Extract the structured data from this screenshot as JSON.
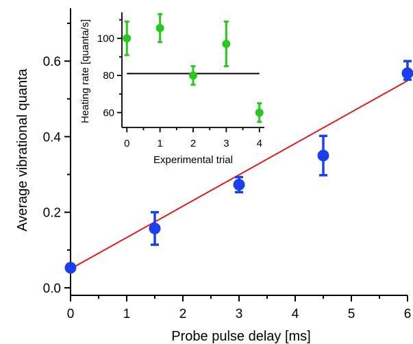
{
  "chart_data": [
    {
      "type": "scatter",
      "xlabel": "Probe pulse delay [ms]",
      "ylabel": "Average vibrational quanta",
      "xlim": [
        0,
        6
      ],
      "ylim": [
        -0.02,
        0.74
      ],
      "xticks": [
        0,
        1,
        2,
        3,
        4,
        5,
        6
      ],
      "xtick_labels": [
        "0",
        "1",
        "2",
        "3",
        "4",
        "5",
        "6"
      ],
      "yticks": [
        0.0,
        0.2,
        0.4,
        0.6
      ],
      "ytick_labels": [
        "0.0",
        "0.2",
        "0.4",
        "0.6"
      ],
      "grid": false,
      "colors": {
        "points": "#1a3ff0",
        "fit": "#e01818"
      },
      "series": [
        {
          "kind": "points",
          "x": [
            0,
            1.5,
            3,
            4.5,
            6
          ],
          "y": [
            0.053,
            0.157,
            0.273,
            0.35,
            0.568
          ],
          "y_err_low": [
            0.0,
            0.043,
            0.02,
            0.052,
            0.017
          ],
          "y_err_high": [
            0.0,
            0.043,
            0.02,
            0.052,
            0.032
          ]
        },
        {
          "kind": "line",
          "x": [
            0,
            6
          ],
          "y": [
            0.05,
            0.548
          ]
        }
      ]
    },
    {
      "type": "scatter",
      "xlabel": "Experimental trial",
      "ylabel": "Heating rate [quanta/s]",
      "xlim": [
        -0.15,
        4.15
      ],
      "ylim": [
        52,
        114
      ],
      "xticks": [
        0,
        1,
        2,
        3,
        4
      ],
      "xtick_labels": [
        "0",
        "1",
        "2",
        "3",
        "4"
      ],
      "yticks": [
        60,
        80,
        100
      ],
      "ytick_labels": [
        "60",
        "80",
        "100"
      ],
      "grid": false,
      "colors": {
        "points": "#28c81e",
        "mean": "#000000"
      },
      "series": [
        {
          "kind": "points",
          "x": [
            0,
            1,
            2,
            3,
            4
          ],
          "y": [
            100,
            105.5,
            80,
            97,
            60
          ],
          "y_err_low": [
            9,
            7.5,
            5,
            12,
            5
          ],
          "y_err_high": [
            9,
            7.5,
            5,
            12,
            5
          ]
        },
        {
          "kind": "hline",
          "x": [
            0,
            4
          ],
          "y": [
            81,
            81
          ]
        }
      ]
    }
  ]
}
